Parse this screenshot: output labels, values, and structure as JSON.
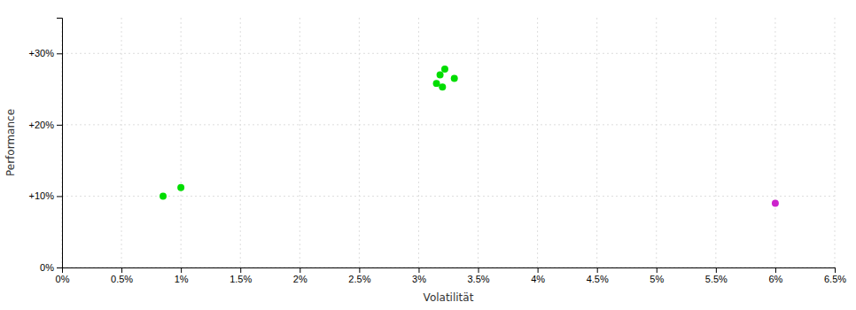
{
  "chart_data": {
    "type": "scatter",
    "xlabel": "Volatilität",
    "ylabel": "Performance",
    "xlim": [
      0.0,
      0.065
    ],
    "ylim": [
      0.0,
      0.35
    ],
    "xticks": [
      {
        "value": 0.0,
        "label": "0%"
      },
      {
        "value": 0.005,
        "label": "0.5%"
      },
      {
        "value": 0.01,
        "label": "1%"
      },
      {
        "value": 0.015,
        "label": "1.5%"
      },
      {
        "value": 0.02,
        "label": "2%"
      },
      {
        "value": 0.025,
        "label": "2.5%"
      },
      {
        "value": 0.03,
        "label": "3%"
      },
      {
        "value": 0.035,
        "label": "3.5%"
      },
      {
        "value": 0.04,
        "label": "4%"
      },
      {
        "value": 0.045,
        "label": "4.5%"
      },
      {
        "value": 0.05,
        "label": "5%"
      },
      {
        "value": 0.055,
        "label": "5.5%"
      },
      {
        "value": 0.06,
        "label": "6%"
      },
      {
        "value": 0.065,
        "label": "6.5%"
      }
    ],
    "yticks": [
      {
        "value": 0.0,
        "label": "0%"
      },
      {
        "value": 0.1,
        "label": "+10%"
      },
      {
        "value": 0.2,
        "label": "+20%"
      },
      {
        "value": 0.3,
        "label": "+30%"
      }
    ],
    "grid": true,
    "marker": "circle",
    "series": [
      {
        "color": "#00dd00",
        "x": [
          0.0085,
          0.01,
          0.0318,
          0.0322,
          0.033,
          0.0315,
          0.032
        ],
        "values": [
          0.1,
          0.112,
          0.27,
          0.278,
          0.265,
          0.258,
          0.253
        ]
      },
      {
        "color": "#cc22cc",
        "x": [
          0.06
        ],
        "values": [
          0.09
        ]
      }
    ]
  }
}
